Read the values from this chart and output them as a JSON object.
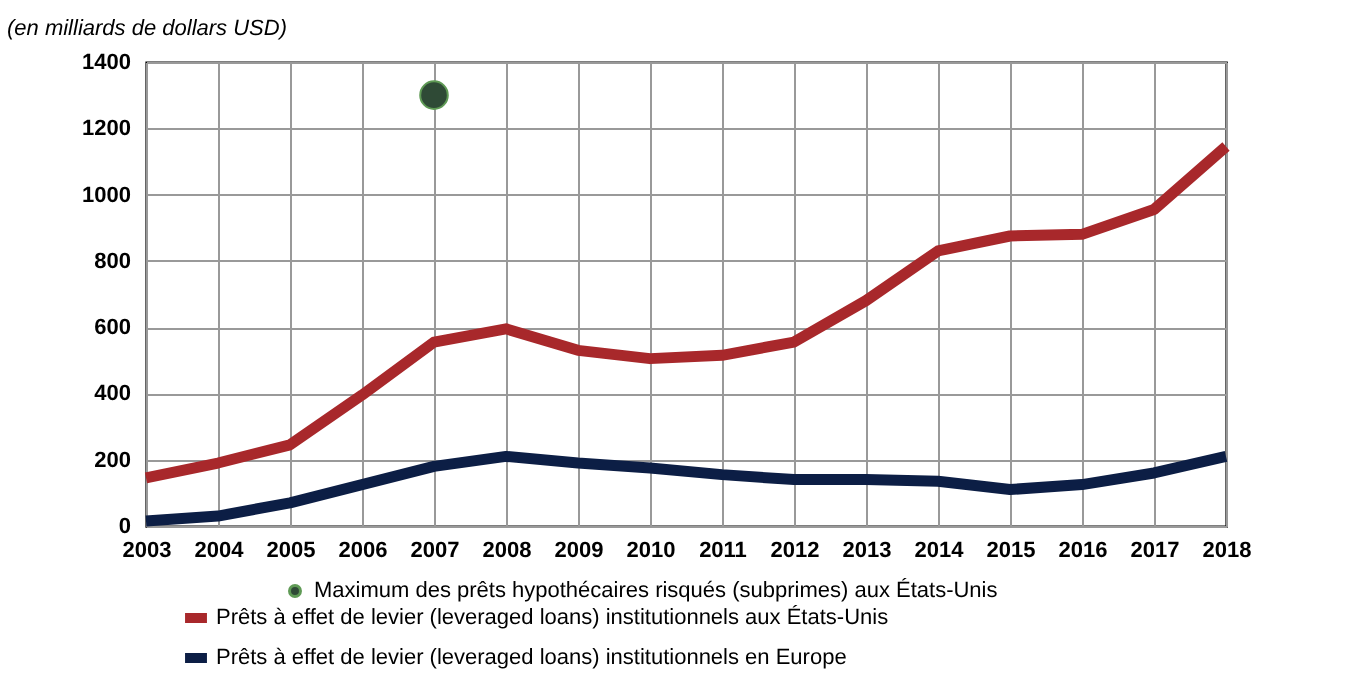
{
  "chart_data": {
    "type": "line",
    "ylabel": "(en milliards de dollars USD)",
    "categories": [
      "2003",
      "2004",
      "2005",
      "2006",
      "2007",
      "2008",
      "2009",
      "2010",
      "2011",
      "2012",
      "2013",
      "2014",
      "2015",
      "2016",
      "2017",
      "2018"
    ],
    "series": [
      {
        "name": "Maximum des prêts hypothécaires risqués (subprimes) aux États-Unis",
        "type": "scatter",
        "color": "#2f4a36",
        "values": [
          null,
          null,
          null,
          null,
          1300,
          null,
          null,
          null,
          null,
          null,
          null,
          null,
          null,
          null,
          null,
          null
        ]
      },
      {
        "name": "Prêts à effet de levier (leveraged loans) institutionnels aux États-Unis",
        "color": "#a8282b",
        "values": [
          145,
          190,
          245,
          395,
          555,
          595,
          530,
          505,
          515,
          555,
          680,
          830,
          875,
          880,
          955,
          1145
        ]
      },
      {
        "name": "Prêts à effet de levier (leveraged loans) institutionnels en Europe",
        "color": "#0c1e45",
        "values": [
          15,
          30,
          70,
          125,
          180,
          210,
          190,
          175,
          155,
          140,
          140,
          135,
          110,
          125,
          160,
          210
        ]
      }
    ],
    "ylim": [
      0,
      1400
    ],
    "yticks": [
      0,
      200,
      400,
      600,
      800,
      1000,
      1200,
      1400
    ],
    "grid": true,
    "legend": "bottom"
  }
}
